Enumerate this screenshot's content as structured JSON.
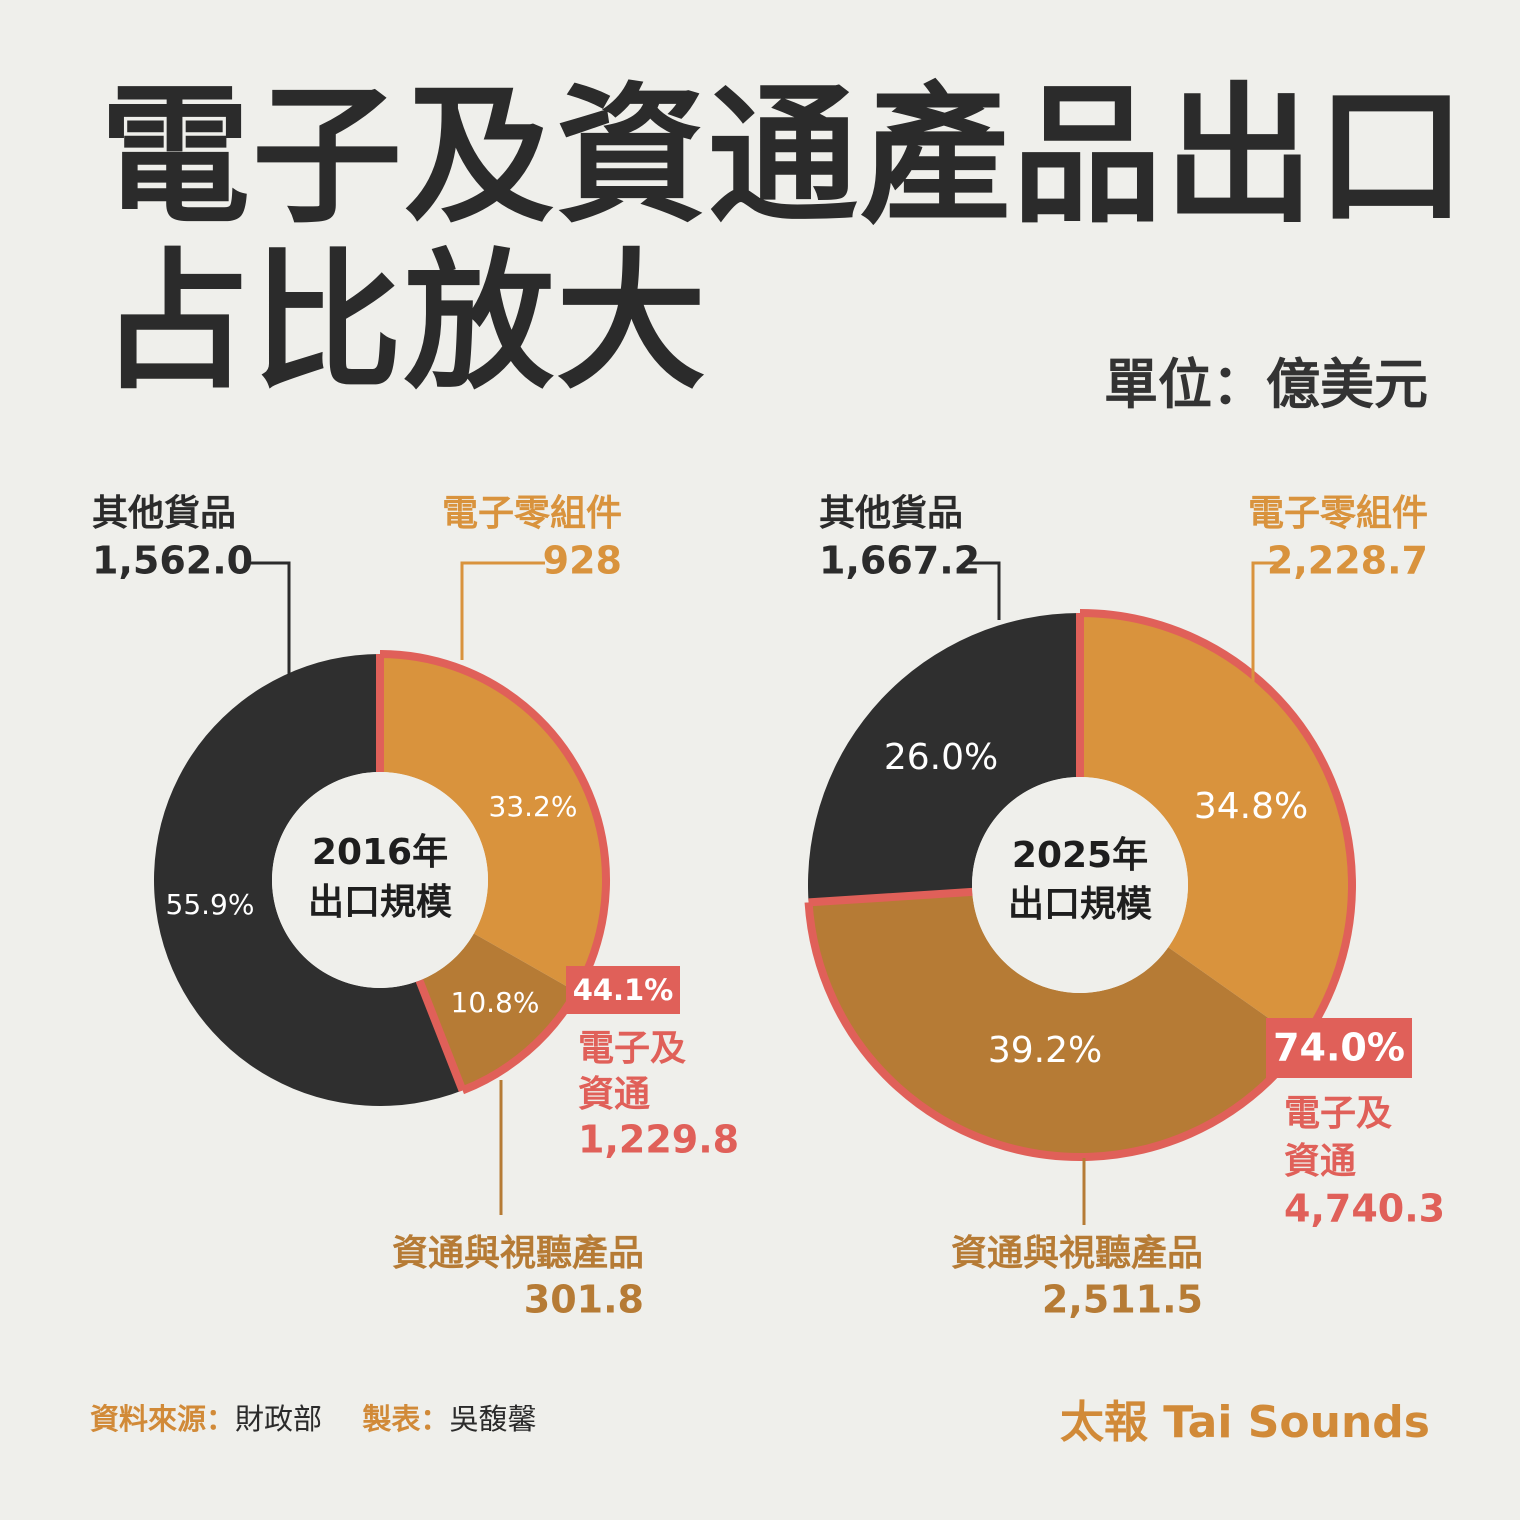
{
  "title_line1": "電子及資通產品出口",
  "title_line2": "占比放大",
  "unit": "單位：億美元",
  "colors": {
    "other": "#2f2f2f",
    "components": "#d9933d",
    "ict": "#b67b35",
    "highlight": "#e06059",
    "background": "#efefeb"
  },
  "chart_data": [
    {
      "type": "pie",
      "center_label": [
        "2016年",
        "出口規模"
      ],
      "slices": [
        {
          "name": "電子零組件",
          "value": 928,
          "value_label": "928",
          "percent_label": "33.2%",
          "highlight": true
        },
        {
          "name": "資通與視聽產品",
          "value": 301.8,
          "value_label": "301.8",
          "percent_label": "10.8%",
          "highlight": true
        },
        {
          "name": "其他貨品",
          "value": 1562.0,
          "value_label": "1,562.0",
          "percent_label": "55.9%",
          "highlight": false
        }
      ],
      "combined": {
        "percent_label": "44.1%",
        "name_line1": "電子及",
        "name_line2": "資通",
        "value_label": "1,229.8"
      }
    },
    {
      "type": "pie",
      "center_label": [
        "2025年",
        "出口規模"
      ],
      "slices": [
        {
          "name": "電子零組件",
          "value": 2228.7,
          "value_label": "2,228.7",
          "percent_label": "34.8%",
          "highlight": true
        },
        {
          "name": "資通與視聽產品",
          "value": 2511.5,
          "value_label": "2,511.5",
          "percent_label": "39.2%",
          "highlight": true
        },
        {
          "name": "其他貨品",
          "value": 1667.2,
          "value_label": "1,667.2",
          "percent_label": "26.0%",
          "highlight": false
        }
      ],
      "combined": {
        "percent_label": "74.0%",
        "name_line1": "電子及",
        "name_line2": "資通",
        "value_label": "4,740.3"
      }
    }
  ],
  "footer": {
    "source_key": "資料來源：",
    "source_value": "財政部",
    "maker_key": "製表：",
    "maker_value": "吳馥馨",
    "brand": "太報 Tai Sounds"
  }
}
